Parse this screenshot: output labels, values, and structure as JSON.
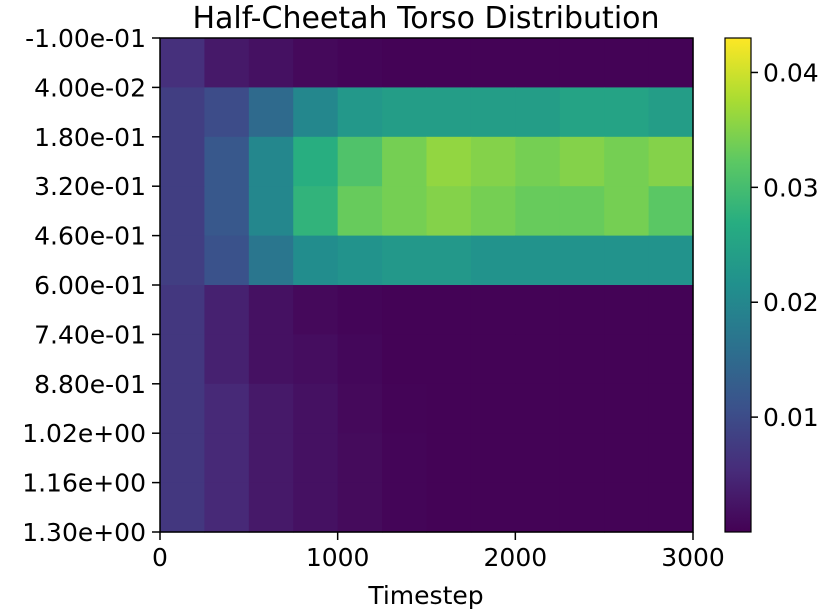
{
  "chart_data": {
    "type": "heatmap",
    "title": "Half-Cheetah Torso Distribution",
    "xlabel": "Timestep",
    "ylabel": "",
    "xlim": [
      0,
      3000
    ],
    "ylim": [
      -0.1,
      1.3
    ],
    "x_ticks": [
      {
        "value": 0,
        "label": "0"
      },
      {
        "value": 1000,
        "label": "1000"
      },
      {
        "value": 2000,
        "label": "2000"
      },
      {
        "value": 3000,
        "label": "3000"
      }
    ],
    "y_ticks": [
      {
        "value": -0.1,
        "label": "-1.00e-01"
      },
      {
        "value": 0.04,
        "label": "4.00e-02"
      },
      {
        "value": 0.18,
        "label": "1.80e-01"
      },
      {
        "value": 0.32,
        "label": "3.20e-01"
      },
      {
        "value": 0.46,
        "label": "4.60e-01"
      },
      {
        "value": 0.6,
        "label": "6.00e-01"
      },
      {
        "value": 0.74,
        "label": "7.40e-01"
      },
      {
        "value": 0.88,
        "label": "8.80e-01"
      },
      {
        "value": 1.02,
        "label": "1.02e+00"
      },
      {
        "value": 1.16,
        "label": "1.16e+00"
      },
      {
        "value": 1.3,
        "label": "1.30e+00"
      }
    ],
    "y_inverted": true,
    "colormap": "viridis",
    "colorbar": {
      "range": [
        0.0,
        0.043
      ],
      "ticks": [
        {
          "value": 0.01,
          "label": "0.01"
        },
        {
          "value": 0.02,
          "label": "0.02"
        },
        {
          "value": 0.03,
          "label": "0.03"
        },
        {
          "value": 0.04,
          "label": "0.04"
        }
      ]
    },
    "grid": false,
    "x_bins": [
      0,
      250,
      500,
      750,
      1000,
      1250,
      1500,
      1750,
      2000,
      2250,
      2500,
      2750,
      3000
    ],
    "y_bins": [
      -0.1,
      0.04,
      0.18,
      0.32,
      0.46,
      0.6,
      0.74,
      0.88,
      1.02,
      1.16,
      1.3
    ],
    "values": [
      [
        0.006,
        0.003,
        0.002,
        0.001,
        0.0005,
        0.0003,
        0.0003,
        0.0003,
        0.0003,
        0.0003,
        0.0003,
        0.0003
      ],
      [
        0.008,
        0.01,
        0.015,
        0.02,
        0.023,
        0.024,
        0.024,
        0.024,
        0.024,
        0.025,
        0.025,
        0.024
      ],
      [
        0.008,
        0.012,
        0.02,
        0.027,
        0.031,
        0.034,
        0.036,
        0.035,
        0.034,
        0.035,
        0.034,
        0.035
      ],
      [
        0.008,
        0.012,
        0.02,
        0.028,
        0.033,
        0.034,
        0.035,
        0.034,
        0.033,
        0.033,
        0.034,
        0.032
      ],
      [
        0.008,
        0.011,
        0.017,
        0.021,
        0.022,
        0.023,
        0.023,
        0.022,
        0.022,
        0.022,
        0.022,
        0.022
      ],
      [
        0.007,
        0.004,
        0.002,
        0.001,
        0.0005,
        0.0003,
        0.0003,
        0.0003,
        0.0003,
        0.0003,
        0.0003,
        0.0003
      ],
      [
        0.007,
        0.004,
        0.002,
        0.0015,
        0.0008,
        0.0003,
        0.0003,
        0.0003,
        0.0003,
        0.0003,
        0.0003,
        0.0003
      ],
      [
        0.007,
        0.005,
        0.003,
        0.002,
        0.001,
        0.0004,
        0.0003,
        0.0003,
        0.0003,
        0.0003,
        0.0003,
        0.0003
      ],
      [
        0.007,
        0.005,
        0.003,
        0.002,
        0.0012,
        0.0005,
        0.0003,
        0.0003,
        0.0003,
        0.0003,
        0.0003,
        0.0003
      ],
      [
        0.007,
        0.005,
        0.003,
        0.002,
        0.0012,
        0.0005,
        0.0003,
        0.0003,
        0.0003,
        0.0003,
        0.0003,
        0.0003
      ]
    ]
  }
}
